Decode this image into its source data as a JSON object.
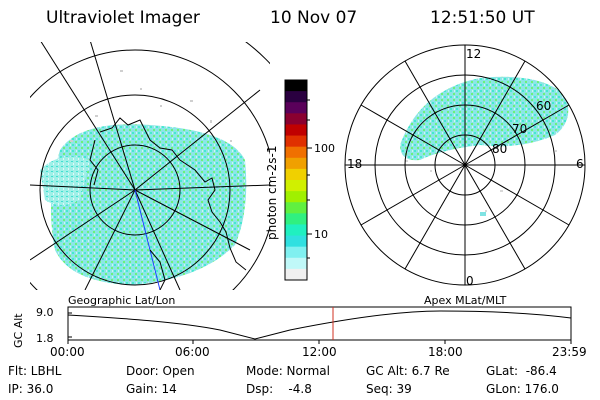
{
  "header": {
    "instrument": "Ultraviolet Imager",
    "date": "10 Nov 07",
    "time": "12:51:50 UT"
  },
  "colorbar": {
    "unit_label": "photon cm-2s-1",
    "tick_labels": [
      "100",
      "10"
    ],
    "colors": [
      "#000000",
      "#2a0040",
      "#5a005a",
      "#8a0030",
      "#c00000",
      "#e03000",
      "#f07000",
      "#f0a000",
      "#f0d000",
      "#d0f000",
      "#a0f000",
      "#60f040",
      "#30f080",
      "#20f0c0",
      "#30e0e0",
      "#80f0f0",
      "#c0f8f8",
      "#f0f0f0"
    ]
  },
  "left_map": {
    "caption": "Geographic Lat/Lon"
  },
  "right_map": {
    "caption": "Apex MLat/MLT",
    "mlt_labels": {
      "top": "12",
      "left": "18",
      "right": "6",
      "bottom": "0"
    },
    "lat_labels": [
      "60",
      "70",
      "80"
    ]
  },
  "altitude_strip": {
    "axis_label": "GC Alt",
    "y_ticks": [
      "9.0",
      "1.8"
    ],
    "x_ticks": [
      "00:00",
      "06:00",
      "12:00",
      "18:00",
      "23:59"
    ],
    "marker_time": "12:51:50"
  },
  "status": {
    "filter": "Flt: LBHL",
    "ip": "IP: 36.0",
    "door": "Door: Open",
    "gain": "Gain: 14",
    "mode": "Mode: Normal",
    "dsp": "Dsp:    -4.8",
    "gc_alt": "GC Alt: 6.7 Re",
    "seq": "Seq: 39",
    "glat": "GLat:  -86.4",
    "glon": "GLon: 176.0"
  }
}
